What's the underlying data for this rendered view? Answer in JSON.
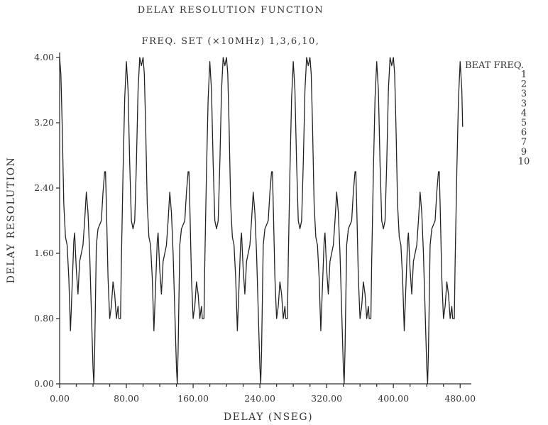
{
  "chart_data": {
    "type": "line",
    "title": "DELAY RESOLUTION FUNCTION",
    "subtitle": "FREQ. SET (×10MHz) 1,3,6,10,",
    "xlabel": "DELAY (NSEG)",
    "ylabel": "DELAY RESOLUTION",
    "xlim": [
      0,
      490
    ],
    "ylim": [
      0,
      4.0
    ],
    "xticks": [
      "0.00",
      "80.00",
      "160.00",
      "240.00",
      "320.00",
      "400.00",
      "480.00"
    ],
    "yticks": [
      "0.00",
      "0.80",
      "1.60",
      "2.40",
      "3.20",
      "4.00"
    ],
    "grid": false,
    "legend": {
      "placement": "right",
      "header": "BEAT FREQ.",
      "entries": [
        "1",
        "2",
        "3",
        "3",
        "4",
        "5",
        "6",
        "7",
        "9",
        "10"
      ]
    },
    "period": 100,
    "period_points": [
      [
        0,
        4.0
      ],
      [
        1.5,
        3.8
      ],
      [
        3,
        3.2
      ],
      [
        5,
        2.2
      ],
      [
        7,
        1.8
      ],
      [
        9,
        1.7
      ],
      [
        11,
        1.3
      ],
      [
        13,
        0.65
      ],
      [
        15,
        1.2
      ],
      [
        17,
        1.75
      ],
      [
        18,
        1.85
      ],
      [
        20,
        1.4
      ],
      [
        22,
        1.1
      ],
      [
        24,
        1.5
      ],
      [
        26,
        1.6
      ],
      [
        28,
        1.7
      ],
      [
        30,
        2.0
      ],
      [
        32,
        2.35
      ],
      [
        34,
        2.1
      ],
      [
        36,
        1.6
      ],
      [
        38,
        0.9
      ],
      [
        40,
        0.2
      ],
      [
        41,
        0.0
      ],
      [
        42,
        0.4
      ],
      [
        44,
        1.7
      ],
      [
        46,
        1.9
      ],
      [
        48,
        1.95
      ],
      [
        50,
        2.0
      ],
      [
        52,
        2.35
      ],
      [
        54,
        2.6
      ],
      [
        55,
        2.6
      ],
      [
        56,
        2.2
      ],
      [
        58,
        1.3
      ],
      [
        60,
        0.8
      ],
      [
        62,
        0.95
      ],
      [
        64,
        1.25
      ],
      [
        66,
        1.1
      ],
      [
        68,
        0.8
      ],
      [
        70,
        0.95
      ],
      [
        71,
        0.8
      ],
      [
        73,
        0.8
      ],
      [
        74,
        1.5
      ],
      [
        76,
        2.6
      ],
      [
        78,
        3.5
      ],
      [
        80,
        3.95
      ],
      [
        82,
        3.6
      ],
      [
        84,
        2.7
      ],
      [
        86,
        2.0
      ],
      [
        88,
        1.9
      ],
      [
        90,
        2.0
      ],
      [
        92,
        2.7
      ],
      [
        94,
        3.6
      ],
      [
        96,
        4.0
      ],
      [
        98,
        3.9
      ],
      [
        100,
        4.0
      ]
    ],
    "x_start": 0,
    "x_end": 483
  }
}
